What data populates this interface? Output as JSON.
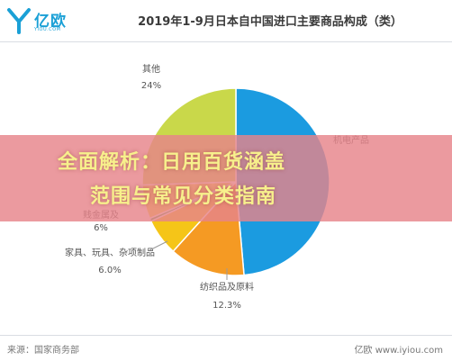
{
  "header": {
    "logo_text": "亿欧",
    "logo_sub": "YIOU.COM",
    "title": "2019年1-9月日本自中国进口主要商品构成（类）"
  },
  "chart_data": {
    "type": "pie",
    "slices": [
      {
        "label": "机电产品",
        "value": 45.7,
        "value_label": "",
        "color": "#1b9be0"
      },
      {
        "label": "纺织品及原料",
        "value": 12.3,
        "value_label": "12.3%",
        "color": "#f59a23"
      },
      {
        "label": "家具、玩具、杂项制品",
        "value": 6.0,
        "value_label": "6.0%",
        "color": "#f5c518"
      },
      {
        "label": "",
        "value": 0.5,
        "value_label": "",
        "color": "#4aa84a"
      },
      {
        "label": "",
        "value": 5.5,
        "value_label": "",
        "color": "#f2dc3e"
      },
      {
        "label": "其他",
        "value": 24.0,
        "value_label": "24%",
        "color": "#c9d84a"
      }
    ],
    "partial_labels": [
      {
        "text": "6%"
      },
      {
        "text": "贱金属及"
      }
    ]
  },
  "overlay": {
    "line1": "全面解析：日用百货涵盖",
    "line2": "范围与常见分类指南"
  },
  "footer": {
    "source": "来源：国家商务部",
    "site": "亿欧 www.iyiou.com"
  }
}
